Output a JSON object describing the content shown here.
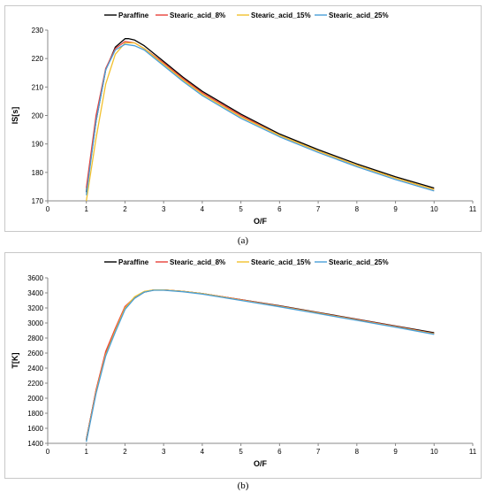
{
  "captions": [
    "(a)",
    "(b)"
  ],
  "chart_data": [
    {
      "type": "line",
      "title": "",
      "xlabel": "O/F",
      "ylabel": "IS[s]",
      "xlim": [
        0,
        11
      ],
      "ylim": [
        170,
        230
      ],
      "xticks": [
        0,
        1,
        2,
        3,
        4,
        5,
        6,
        7,
        8,
        9,
        10,
        11
      ],
      "yticks": [
        170,
        180,
        190,
        200,
        210,
        220,
        230
      ],
      "grid": false,
      "legend": "top",
      "series": [
        {
          "name": "Paraffine",
          "color": "#000000",
          "x": [
            1,
            1.25,
            1.5,
            1.75,
            2,
            2.1,
            2.25,
            2.5,
            3,
            3.5,
            4,
            5,
            6,
            7,
            8,
            9,
            10
          ],
          "y": [
            173,
            198,
            216,
            224,
            227,
            227,
            226.5,
            224.5,
            219,
            213.5,
            208.5,
            200.5,
            193.5,
            188,
            183,
            178.5,
            174.5
          ]
        },
        {
          "name": "Stearic_acid_8%",
          "color": "#e8413a",
          "x": [
            1,
            1.25,
            1.5,
            1.75,
            2,
            2.25,
            2.5,
            3,
            3.5,
            4,
            5,
            6,
            7,
            8,
            9,
            10
          ],
          "y": [
            174.5,
            200,
            216.5,
            223.5,
            226,
            225.5,
            223.5,
            218.5,
            213,
            208,
            200,
            193,
            187.5,
            182.5,
            178,
            174
          ]
        },
        {
          "name": "Stearic_acid_15%",
          "color": "#f2c12e",
          "x": [
            1,
            1.25,
            1.5,
            1.75,
            2,
            2.25,
            2.5,
            3,
            3.5,
            4,
            5,
            6,
            7,
            8,
            9,
            10
          ],
          "y": [
            170,
            192,
            211,
            221.5,
            225.5,
            225.5,
            223.5,
            218,
            212.5,
            207.5,
            199.5,
            193,
            187.5,
            182.5,
            178,
            174
          ]
        },
        {
          "name": "Stearic_acid_25%",
          "color": "#4a9fd8",
          "x": [
            1,
            1.25,
            1.5,
            1.75,
            2,
            2.25,
            2.5,
            3,
            3.5,
            4,
            5,
            6,
            7,
            8,
            9,
            10
          ],
          "y": [
            172,
            198,
            216,
            223,
            225,
            224.5,
            223,
            217.5,
            212,
            207,
            199,
            192.5,
            187,
            182,
            177.5,
            173.5
          ]
        }
      ]
    },
    {
      "type": "line",
      "title": "",
      "xlabel": "O/F",
      "ylabel": "T[K]",
      "xlim": [
        0,
        11
      ],
      "ylim": [
        1400,
        3600
      ],
      "xticks": [
        0,
        1,
        2,
        3,
        4,
        5,
        6,
        7,
        8,
        9,
        10,
        11
      ],
      "yticks": [
        1400,
        1600,
        1800,
        2000,
        2200,
        2400,
        2600,
        2800,
        3000,
        3200,
        3400,
        3600
      ],
      "grid": false,
      "legend": "top",
      "series": [
        {
          "name": "Paraffine",
          "color": "#000000",
          "x": [
            1,
            1.25,
            1.5,
            1.75,
            2,
            2.25,
            2.5,
            2.75,
            3,
            3.5,
            4,
            5,
            6,
            7,
            8,
            9,
            10
          ],
          "y": [
            1450,
            2100,
            2600,
            2900,
            3200,
            3330,
            3410,
            3440,
            3440,
            3420,
            3390,
            3310,
            3230,
            3140,
            3050,
            2960,
            2870
          ]
        },
        {
          "name": "Stearic_acid_8%",
          "color": "#e8413a",
          "x": [
            1,
            1.25,
            1.5,
            1.75,
            2,
            2.25,
            2.5,
            2.75,
            3,
            3.5,
            4,
            5,
            6,
            7,
            8,
            9,
            10
          ],
          "y": [
            1440,
            2110,
            2620,
            2930,
            3220,
            3340,
            3415,
            3440,
            3440,
            3420,
            3390,
            3310,
            3225,
            3135,
            3045,
            2955,
            2860
          ]
        },
        {
          "name": "Stearic_acid_15%",
          "color": "#f2c12e",
          "x": [
            1,
            1.25,
            1.5,
            1.75,
            2,
            2.25,
            2.5,
            2.75,
            3,
            3.5,
            4,
            5,
            6,
            7,
            8,
            9,
            10
          ],
          "y": [
            1430,
            2080,
            2580,
            2900,
            3200,
            3350,
            3420,
            3440,
            3440,
            3420,
            3390,
            3305,
            3220,
            3130,
            3040,
            2950,
            2855
          ]
        },
        {
          "name": "Stearic_acid_25%",
          "color": "#4a9fd8",
          "x": [
            1,
            1.25,
            1.5,
            1.75,
            2,
            2.25,
            2.5,
            2.75,
            3,
            3.5,
            4,
            5,
            6,
            7,
            8,
            9,
            10
          ],
          "y": [
            1420,
            2060,
            2560,
            2880,
            3180,
            3330,
            3410,
            3435,
            3435,
            3415,
            3385,
            3300,
            3215,
            3125,
            3035,
            2945,
            2850
          ]
        }
      ]
    }
  ]
}
